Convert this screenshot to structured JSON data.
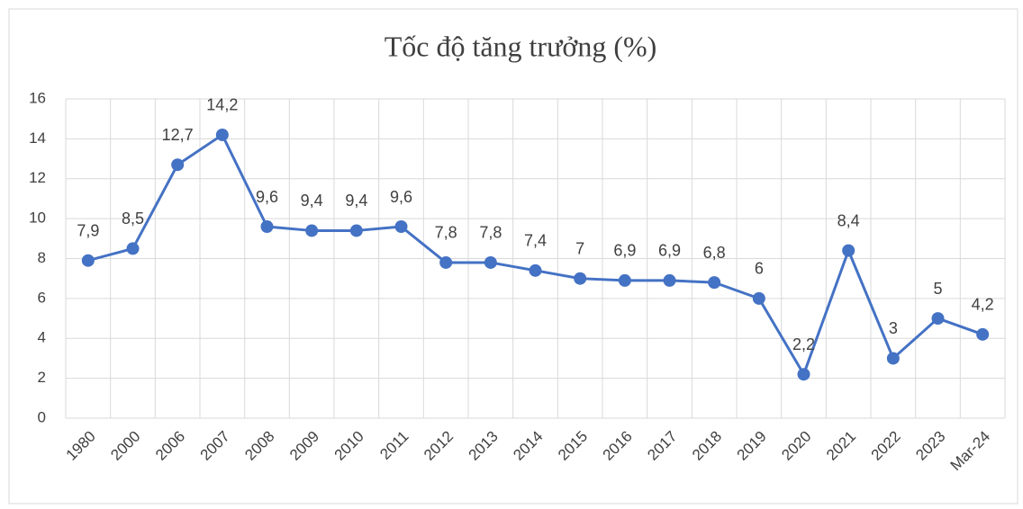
{
  "chart_data": {
    "type": "line",
    "title": "Tốc độ tăng trưởng (%)",
    "categories": [
      "1980",
      "2000",
      "2006",
      "2007",
      "2008",
      "2009",
      "2010",
      "2011",
      "2012",
      "2013",
      "2014",
      "2015",
      "2016",
      "2017",
      "2018",
      "2019",
      "2020",
      "2021",
      "2022",
      "2023",
      "Mar-24"
    ],
    "values": [
      7.9,
      8.5,
      12.7,
      14.2,
      9.6,
      9.4,
      9.4,
      9.6,
      7.8,
      7.8,
      7.4,
      7,
      6.9,
      6.9,
      6.8,
      6,
      2.2,
      8.4,
      3,
      5,
      4.2
    ],
    "value_labels": [
      "7,9",
      "8,5",
      "12,7",
      "14,2",
      "9,6",
      "9,4",
      "9,4",
      "9,6",
      "7,8",
      "7,8",
      "7,4",
      "7",
      "6,9",
      "6,9",
      "6,8",
      "6",
      "2,2",
      "8,4",
      "3",
      "5",
      "4,2"
    ],
    "color": "#4472c4",
    "ylim": [
      0,
      16
    ],
    "yticks": [
      0,
      2,
      4,
      6,
      8,
      10,
      12,
      14,
      16
    ],
    "grid": true
  }
}
